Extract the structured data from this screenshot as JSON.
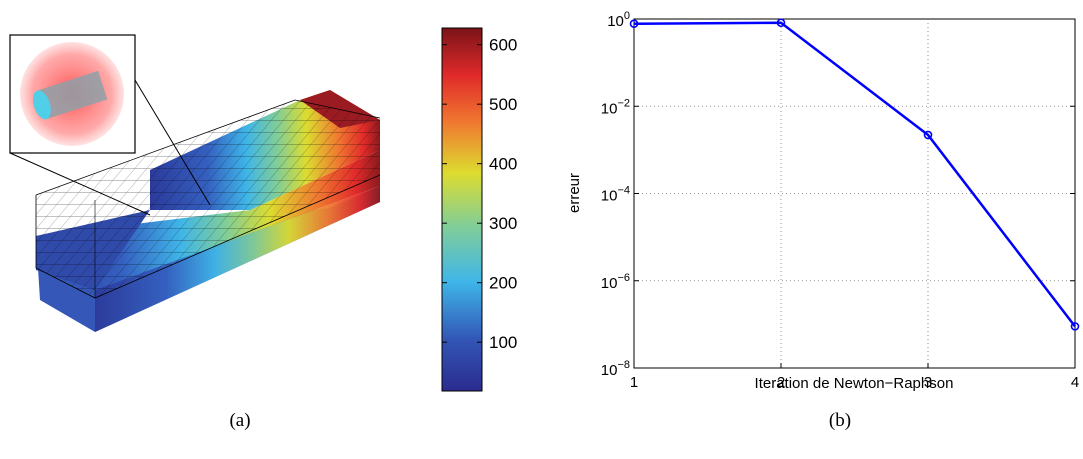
{
  "captions": {
    "a": "(a)",
    "b": "(b)"
  },
  "colorbar": {
    "ticks": [
      100,
      200,
      300,
      400,
      500,
      600
    ],
    "range": [
      18,
      628
    ],
    "colormap": [
      "#2b2c8f",
      "#3560c0",
      "#3fb5e8",
      "#7fcd9a",
      "#dcdc30",
      "#f07830",
      "#e02a2a",
      "#7a1318"
    ]
  },
  "chart_data": {
    "type": "line",
    "x": [
      1,
      2,
      3,
      4
    ],
    "series": [
      {
        "values": [
          0.78,
          0.82,
          0.0022,
          9e-08
        ],
        "color": "#0000ff"
      }
    ],
    "xlabel": "Iteration de Newton−Raphson",
    "ylabel": "erreur",
    "xlim": [
      1,
      4
    ],
    "ylim": [
      1e-08,
      1
    ],
    "yscale": "log",
    "xticks": [
      "1",
      "2",
      "3",
      "4"
    ],
    "yticks": [
      {
        "base": "10",
        "exp": "0"
      },
      {
        "base": "10",
        "exp": "−2"
      },
      {
        "base": "10",
        "exp": "−4"
      },
      {
        "base": "10",
        "exp": "−6"
      },
      {
        "base": "10",
        "exp": "−8"
      }
    ],
    "grid": true
  }
}
